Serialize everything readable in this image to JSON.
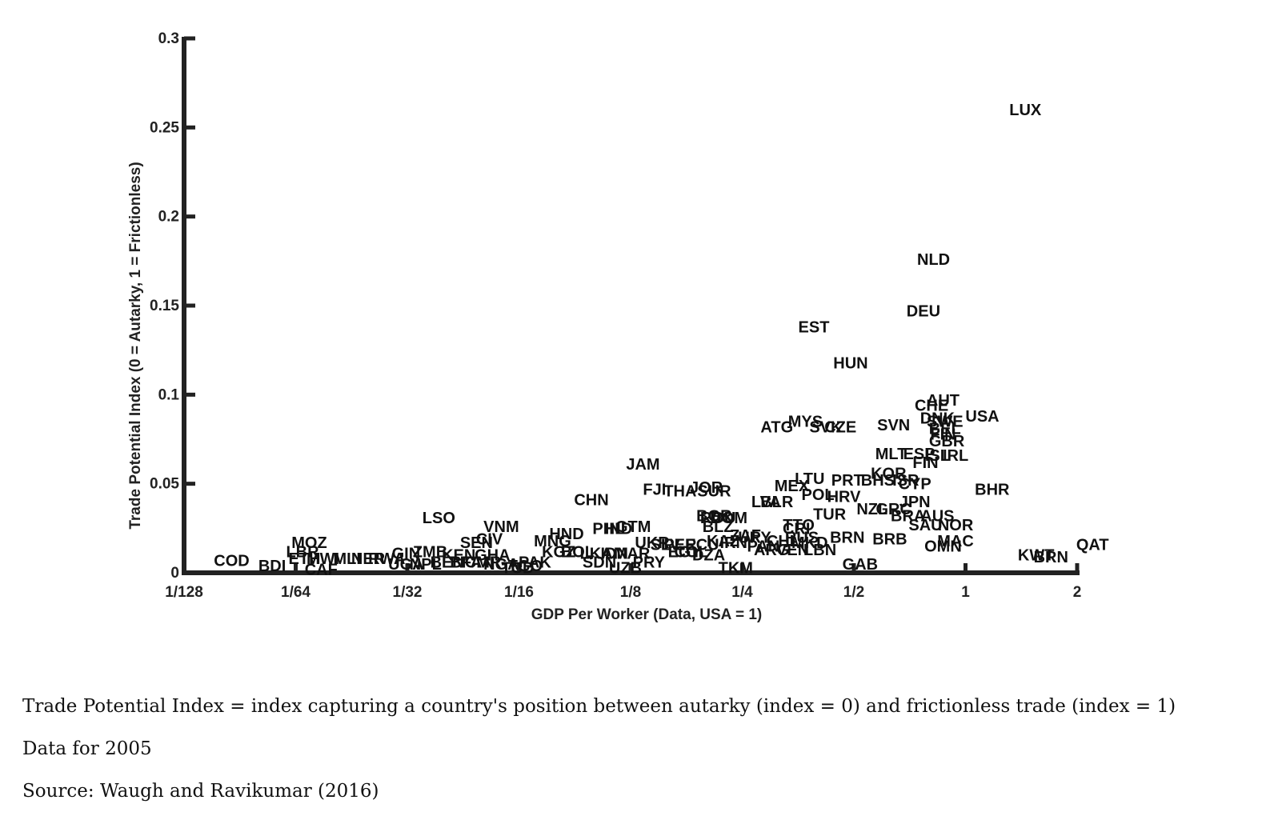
{
  "chart_data": {
    "type": "scatter",
    "xlabel": "GDP Per Worker (Data, USA = 1)",
    "ylabel": "Trade Potential Index (0 = Autarky, 1 = Frictionless)",
    "x_scale": "log2",
    "xlim": [
      0.0078125,
      2
    ],
    "ylim": [
      0,
      0.3
    ],
    "x_ticks": [
      {
        "value": 0.0078125,
        "label": "1/128"
      },
      {
        "value": 0.015625,
        "label": "1/64"
      },
      {
        "value": 0.03125,
        "label": "1/32"
      },
      {
        "value": 0.0625,
        "label": "1/16"
      },
      {
        "value": 0.125,
        "label": "1/8"
      },
      {
        "value": 0.25,
        "label": "1/4"
      },
      {
        "value": 0.5,
        "label": "1/2"
      },
      {
        "value": 1,
        "label": "1"
      },
      {
        "value": 2,
        "label": "2"
      }
    ],
    "y_ticks": [
      {
        "value": 0,
        "label": "0"
      },
      {
        "value": 0.05,
        "label": "0.05"
      },
      {
        "value": 0.1,
        "label": "0.1"
      },
      {
        "value": 0.15,
        "label": "0.15"
      },
      {
        "value": 0.2,
        "label": "0.2"
      },
      {
        "value": 0.25,
        "label": "0.25"
      },
      {
        "value": 0.3,
        "label": "0.3"
      }
    ],
    "grid": false,
    "points": [
      {
        "label": "LUX",
        "x": 1.45,
        "y": 0.26
      },
      {
        "label": "NLD",
        "x": 0.82,
        "y": 0.176
      },
      {
        "label": "DEU",
        "x": 0.77,
        "y": 0.147
      },
      {
        "label": "EST",
        "x": 0.39,
        "y": 0.138
      },
      {
        "label": "HUN",
        "x": 0.49,
        "y": 0.118
      },
      {
        "label": "AUT",
        "x": 0.87,
        "y": 0.097
      },
      {
        "label": "CHE",
        "x": 0.81,
        "y": 0.094
      },
      {
        "label": "USA",
        "x": 1.11,
        "y": 0.088
      },
      {
        "label": "DNK",
        "x": 0.84,
        "y": 0.087
      },
      {
        "label": "SWE",
        "x": 0.88,
        "y": 0.085
      },
      {
        "label": "MYS",
        "x": 0.37,
        "y": 0.085
      },
      {
        "label": "SVN",
        "x": 0.64,
        "y": 0.083
      },
      {
        "label": "ATG",
        "x": 0.31,
        "y": 0.082
      },
      {
        "label": "SVK",
        "x": 0.42,
        "y": 0.082
      },
      {
        "label": "CZE",
        "x": 0.46,
        "y": 0.082
      },
      {
        "label": "BEL",
        "x": 0.88,
        "y": 0.081
      },
      {
        "label": "FIN",
        "x": 0.87,
        "y": 0.078
      },
      {
        "label": "GBR",
        "x": 0.89,
        "y": 0.074
      },
      {
        "label": "MLT",
        "x": 0.63,
        "y": 0.067
      },
      {
        "label": "ESP",
        "x": 0.75,
        "y": 0.067
      },
      {
        "label": "IRL",
        "x": 0.94,
        "y": 0.066
      },
      {
        "label": "ISL",
        "x": 0.84,
        "y": 0.066
      },
      {
        "label": "FIN",
        "x": 0.78,
        "y": 0.062
      },
      {
        "label": "KOR",
        "x": 0.62,
        "y": 0.056
      },
      {
        "label": "LTU",
        "x": 0.38,
        "y": 0.053
      },
      {
        "label": "PRT",
        "x": 0.48,
        "y": 0.052
      },
      {
        "label": "BHS",
        "x": 0.58,
        "y": 0.052
      },
      {
        "label": "ISR",
        "x": 0.69,
        "y": 0.052
      },
      {
        "label": "CYP",
        "x": 0.73,
        "y": 0.05
      },
      {
        "label": "MEX",
        "x": 0.34,
        "y": 0.049
      },
      {
        "label": "BHR",
        "x": 1.18,
        "y": 0.047
      },
      {
        "label": "POL",
        "x": 0.4,
        "y": 0.044
      },
      {
        "label": "HRV",
        "x": 0.47,
        "y": 0.043
      },
      {
        "label": "LVA",
        "x": 0.29,
        "y": 0.04
      },
      {
        "label": "BLR",
        "x": 0.31,
        "y": 0.04
      },
      {
        "label": "JPN",
        "x": 0.73,
        "y": 0.04
      },
      {
        "label": "NZL",
        "x": 0.56,
        "y": 0.036
      },
      {
        "label": "GRC",
        "x": 0.64,
        "y": 0.036
      },
      {
        "label": "TUR",
        "x": 0.43,
        "y": 0.033
      },
      {
        "label": "BRA",
        "x": 0.7,
        "y": 0.032
      },
      {
        "label": "AUS",
        "x": 0.84,
        "y": 0.032
      },
      {
        "label": "SAU",
        "x": 0.78,
        "y": 0.027
      },
      {
        "label": "NOR",
        "x": 0.94,
        "y": 0.027
      },
      {
        "label": "JAM",
        "x": 0.135,
        "y": 0.061
      },
      {
        "label": "FJI",
        "x": 0.145,
        "y": 0.047
      },
      {
        "label": "THA",
        "x": 0.17,
        "y": 0.046
      },
      {
        "label": "JOR",
        "x": 0.2,
        "y": 0.048
      },
      {
        "label": "SUR",
        "x": 0.21,
        "y": 0.046
      },
      {
        "label": "CHN",
        "x": 0.098,
        "y": 0.041
      },
      {
        "label": "LSO",
        "x": 0.038,
        "y": 0.031
      },
      {
        "label": "VNM",
        "x": 0.056,
        "y": 0.026
      },
      {
        "label": "CIV",
        "x": 0.052,
        "y": 0.019
      },
      {
        "label": "SEN",
        "x": 0.048,
        "y": 0.017
      },
      {
        "label": "HND",
        "x": 0.084,
        "y": 0.022
      },
      {
        "label": "MNG",
        "x": 0.077,
        "y": 0.018
      },
      {
        "label": "GTM",
        "x": 0.127,
        "y": 0.026
      },
      {
        "label": "PHL",
        "x": 0.109,
        "y": 0.025
      },
      {
        "label": "IND",
        "x": 0.116,
        "y": 0.025
      },
      {
        "label": "UKR",
        "x": 0.143,
        "y": 0.017
      },
      {
        "label": "EGY",
        "x": 0.175,
        "y": 0.012
      },
      {
        "label": "BGR",
        "x": 0.21,
        "y": 0.032
      },
      {
        "label": "ROU",
        "x": 0.215,
        "y": 0.031
      },
      {
        "label": "DOM",
        "x": 0.23,
        "y": 0.031
      },
      {
        "label": "BLZ",
        "x": 0.215,
        "y": 0.026
      },
      {
        "label": "TTO",
        "x": 0.355,
        "y": 0.027
      },
      {
        "label": "CRI",
        "x": 0.35,
        "y": 0.025
      },
      {
        "label": "BRN",
        "x": 0.48,
        "y": 0.02
      },
      {
        "label": "MAC",
        "x": 0.94,
        "y": 0.018
      },
      {
        "label": "OMN",
        "x": 0.87,
        "y": 0.015
      },
      {
        "label": "BRB",
        "x": 0.625,
        "y": 0.019
      },
      {
        "label": "QAT",
        "x": 2.2,
        "y": 0.016
      },
      {
        "label": "KWT",
        "x": 1.55,
        "y": 0.01
      },
      {
        "label": "BRN",
        "x": 1.7,
        "y": 0.009
      },
      {
        "label": "GAB",
        "x": 0.52,
        "y": 0.005
      },
      {
        "label": "TKM",
        "x": 0.24,
        "y": 0.003
      },
      {
        "label": "UZB",
        "x": 0.121,
        "y": 0.003
      },
      {
        "label": "SDN",
        "x": 0.103,
        "y": 0.006
      },
      {
        "label": "MOZ",
        "x": 0.017,
        "y": 0.017
      },
      {
        "label": "LBR",
        "x": 0.0163,
        "y": 0.012
      },
      {
        "label": "ETH",
        "x": 0.0165,
        "y": 0.008
      },
      {
        "label": "MWI",
        "x": 0.0185,
        "y": 0.008
      },
      {
        "label": "COD",
        "x": 0.0105,
        "y": 0.007
      },
      {
        "label": "BDI",
        "x": 0.0135,
        "y": 0.004
      },
      {
        "label": "CAF",
        "x": 0.0183,
        "y": 0.002
      },
      {
        "label": "ZMB",
        "x": 0.036,
        "y": 0.012
      },
      {
        "label": "GIN",
        "x": 0.031,
        "y": 0.011
      },
      {
        "label": "KEN",
        "x": 0.043,
        "y": 0.01
      },
      {
        "label": "GHA",
        "x": 0.053,
        "y": 0.01
      },
      {
        "label": "TCD",
        "x": 0.062,
        "y": 0.003
      },
      {
        "label": "TGO",
        "x": 0.065,
        "y": 0.004
      }
    ],
    "clutter_labels": [
      {
        "text": "MLI",
        "x": 0.0215,
        "y": 0.008
      },
      {
        "text": "NER",
        "x": 0.0245,
        "y": 0.008
      },
      {
        "text": "RWA",
        "x": 0.0275,
        "y": 0.008
      },
      {
        "text": "UGA",
        "x": 0.031,
        "y": 0.005
      },
      {
        "text": "NPL",
        "x": 0.035,
        "y": 0.005
      },
      {
        "text": "BEN",
        "x": 0.04,
        "y": 0.006
      },
      {
        "text": "BFA",
        "x": 0.045,
        "y": 0.006
      },
      {
        "text": "CMR",
        "x": 0.05,
        "y": 0.006
      },
      {
        "text": "NGA",
        "x": 0.056,
        "y": 0.005
      },
      {
        "text": "PAK",
        "x": 0.069,
        "y": 0.006
      },
      {
        "text": "KGZ",
        "x": 0.08,
        "y": 0.012
      },
      {
        "text": "BOL",
        "x": 0.09,
        "y": 0.012
      },
      {
        "text": "LKA",
        "x": 0.101,
        "y": 0.011
      },
      {
        "text": "IDN",
        "x": 0.113,
        "y": 0.011
      },
      {
        "text": "MAR",
        "x": 0.126,
        "y": 0.011
      },
      {
        "text": "PRY",
        "x": 0.14,
        "y": 0.006
      },
      {
        "text": "SLV",
        "x": 0.155,
        "y": 0.016
      },
      {
        "text": "PER",
        "x": 0.17,
        "y": 0.016
      },
      {
        "text": "COL",
        "x": 0.182,
        "y": 0.012
      },
      {
        "text": "ECU",
        "x": 0.195,
        "y": 0.016
      },
      {
        "text": "DZA",
        "x": 0.203,
        "y": 0.01
      },
      {
        "text": "KAZ",
        "x": 0.222,
        "y": 0.018
      },
      {
        "text": "IRN",
        "x": 0.237,
        "y": 0.017
      },
      {
        "text": "ZAF",
        "x": 0.255,
        "y": 0.021
      },
      {
        "text": "URY",
        "x": 0.27,
        "y": 0.02
      },
      {
        "text": "PAN",
        "x": 0.285,
        "y": 0.015
      },
      {
        "text": "ARG",
        "x": 0.3,
        "y": 0.013
      },
      {
        "text": "CHL",
        "x": 0.322,
        "y": 0.018
      },
      {
        "text": "VEN",
        "x": 0.342,
        "y": 0.013
      },
      {
        "text": "RUS",
        "x": 0.362,
        "y": 0.02
      },
      {
        "text": "MKD",
        "x": 0.38,
        "y": 0.017
      },
      {
        "text": "LBN",
        "x": 0.405,
        "y": 0.013
      }
    ],
    "annotations": [
      "Trade Potential Index = index capturing a country's position between autarky (index = 0) and frictionless trade (index = 1)",
      "Data for 2005",
      "Source: Waugh and Ravikumar (2016)"
    ]
  }
}
